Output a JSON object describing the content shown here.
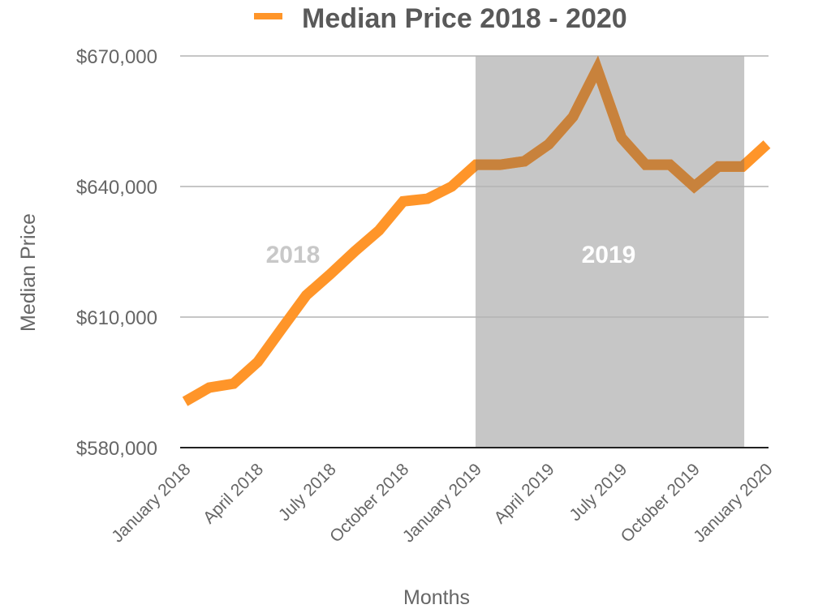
{
  "chart_data": {
    "type": "line",
    "title": "Median Price 2018 - 2020",
    "xlabel": "Months",
    "ylabel": "Median Price",
    "ylim": [
      580000,
      670000
    ],
    "yticks": [
      580000,
      610000,
      640000,
      670000
    ],
    "ytick_labels": [
      "$580,000",
      "$610,000",
      "$640,000",
      "$670,000"
    ],
    "grid": true,
    "legend": {
      "position": "top",
      "entries": [
        "Median Price 2018 - 2020"
      ]
    },
    "x": [
      "2018-01",
      "2018-02",
      "2018-03",
      "2018-04",
      "2018-05",
      "2018-06",
      "2018-07",
      "2018-08",
      "2018-09",
      "2018-10",
      "2018-11",
      "2018-12",
      "2019-01",
      "2019-02",
      "2019-03",
      "2019-04",
      "2019-05",
      "2019-06",
      "2019-07",
      "2019-08",
      "2019-09",
      "2019-10",
      "2019-11",
      "2019-12",
      "2020-01"
    ],
    "xtick_labels": [
      {
        "index": 0,
        "label": "January 2018"
      },
      {
        "index": 3,
        "label": "April 2018"
      },
      {
        "index": 6,
        "label": "July 2018"
      },
      {
        "index": 9,
        "label": "October 2018"
      },
      {
        "index": 12,
        "label": "January 2019"
      },
      {
        "index": 15,
        "label": "April 2019"
      },
      {
        "index": 18,
        "label": "July 2019"
      },
      {
        "index": 21,
        "label": "October 2019"
      },
      {
        "index": 24,
        "label": "January 2020"
      }
    ],
    "series": [
      {
        "name": "Median Price 2018 - 2020",
        "color": "#FF9529",
        "values": [
          590600,
          593800,
          594700,
          599700,
          607400,
          615000,
          619900,
          625100,
          629900,
          636600,
          637200,
          640000,
          645000,
          645000,
          645800,
          649700,
          656000,
          667000,
          651200,
          645000,
          645000,
          640000,
          644600,
          644600,
          649700
        ]
      }
    ],
    "highlight_band": {
      "from_index": 12,
      "to_index": 23,
      "color": "#C6C6C6"
    },
    "annotations": [
      {
        "text": "2018",
        "color": "#C8C8C8"
      },
      {
        "text": "2019",
        "color": "#FFFFFF"
      }
    ]
  }
}
